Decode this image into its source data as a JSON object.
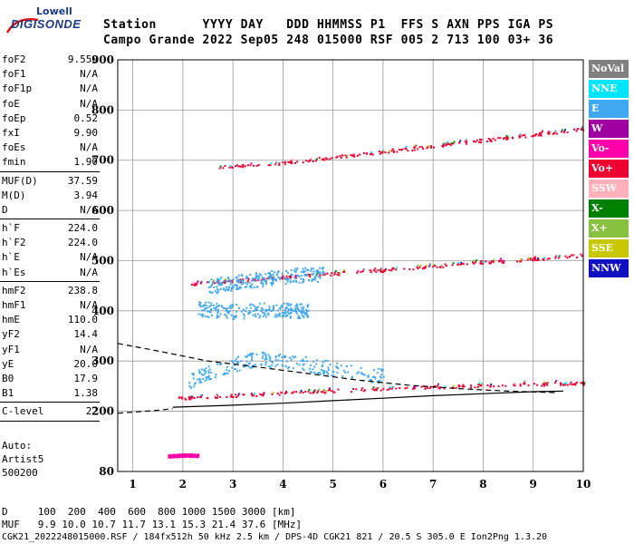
{
  "logo": {
    "line1": "Lowell",
    "line2": "DIGISONDE"
  },
  "header": {
    "row1": "Station      YYYY DAY   DDD HHMMSS P1  FFS S AXN PPS IGA PS",
    "row2": "Campo Grande 2022 Sep05 248 015000 RSF 005 2 713 100 03+ 36"
  },
  "params_group1": [
    {
      "k": "foF2",
      "v": "9.550"
    },
    {
      "k": "foF1",
      "v": "N/A"
    },
    {
      "k": "foF1p",
      "v": "N/A"
    },
    {
      "k": "foE",
      "v": "N/A"
    },
    {
      "k": "foEp",
      "v": "0.52"
    },
    {
      "k": "fxI",
      "v": "9.90"
    },
    {
      "k": "foEs",
      "v": "N/A"
    },
    {
      "k": "fmin",
      "v": "1.90"
    }
  ],
  "params_group2": [
    {
      "k": "MUF(D)",
      "v": "37.59"
    },
    {
      "k": "M(D)",
      "v": "3.94"
    },
    {
      "k": "D",
      "v": "N/A"
    }
  ],
  "params_group3": [
    {
      "k": "h`F",
      "v": "224.0"
    },
    {
      "k": "h`F2",
      "v": "224.0"
    },
    {
      "k": "h`E",
      "v": "N/A"
    },
    {
      "k": "h`Es",
      "v": "N/A"
    }
  ],
  "params_group4": [
    {
      "k": "hmF2",
      "v": "238.8"
    },
    {
      "k": "hmF1",
      "v": "N/A"
    },
    {
      "k": "hmE",
      "v": "110.0"
    },
    {
      "k": "yF2",
      "v": "14.4"
    },
    {
      "k": "yF1",
      "v": "N/A"
    },
    {
      "k": "yE",
      "v": "20.0"
    },
    {
      "k": "B0",
      "v": "17.9"
    },
    {
      "k": "B1",
      "v": "1.38"
    }
  ],
  "params_group5": [
    {
      "k": "C-level",
      "v": "22"
    }
  ],
  "auto": {
    "line1": "Auto:",
    "line2": "Artist5",
    "line3": "500200"
  },
  "legend": [
    {
      "label": "NoVal",
      "color": "#808080"
    },
    {
      "label": "NNE",
      "color": "#00e5ff"
    },
    {
      "label": "E",
      "color": "#40a8f0"
    },
    {
      "label": "W",
      "color": "#a000a0"
    },
    {
      "label": "Vo-",
      "color": "#ff00aa"
    },
    {
      "label": "Vo+",
      "color": "#ee0030"
    },
    {
      "label": "SSW",
      "color": "#ffb0b8"
    },
    {
      "label": "X-",
      "color": "#008000"
    },
    {
      "label": "X+",
      "color": "#88c040"
    },
    {
      "label": "SSE",
      "color": "#c8c800"
    },
    {
      "label": "NNW",
      "color": "#1010c0"
    }
  ],
  "footer": {
    "d_row": "D     100  200  400  600  800 1000 1500 3000 [km]",
    "muf_row": "MUF   9.9 10.0 10.7 11.7 13.1 15.3 21.4 37.6 [MHz]",
    "info_row": "CGK21_2022248015000.RSF / 184fx512h 50 kHz 2.5 km / DPS-4D CGK21 821 / 20.5 S 305.0 E Ion2Png 1.3.20"
  },
  "chart_data": {
    "type": "scatter",
    "xlim": [
      0.7,
      10
    ],
    "ylim": [
      80,
      900
    ],
    "x_ticks": [
      1,
      2,
      3,
      4,
      5,
      6,
      7,
      8,
      9,
      10
    ],
    "x_tick_labels": [
      "1",
      "2",
      "3",
      "4",
      "5",
      "6",
      "7",
      "8",
      "9",
      "10"
    ],
    "y_ticks": [
      80,
      200,
      300,
      400,
      500,
      600,
      700,
      800,
      900
    ],
    "y_tick_labels": [
      "80",
      "200",
      "300",
      "400",
      "500",
      "600",
      "700",
      "800",
      "900"
    ],
    "grid": true,
    "traces": [
      {
        "name": "Vo+",
        "points": [
          [
            1.8,
            226
          ],
          [
            2.5,
            230
          ],
          [
            3.5,
            235
          ],
          [
            4.5,
            240
          ],
          [
            5.5,
            244
          ],
          [
            6.5,
            248
          ],
          [
            7.5,
            251
          ],
          [
            8.5,
            254
          ],
          [
            9.5,
            256
          ],
          [
            10,
            257
          ]
        ]
      },
      {
        "name": "Vo+",
        "points": [
          [
            2.1,
            454
          ],
          [
            3,
            461
          ],
          [
            4,
            468
          ],
          [
            5,
            475
          ],
          [
            6,
            482
          ],
          [
            7,
            490
          ],
          [
            8,
            497
          ],
          [
            9,
            505
          ],
          [
            10,
            512
          ]
        ]
      },
      {
        "name": "Vo+",
        "points": [
          [
            2.6,
            686
          ],
          [
            4,
            696
          ],
          [
            5,
            707
          ],
          [
            6,
            718
          ],
          [
            7,
            729
          ],
          [
            8,
            741
          ],
          [
            9,
            752
          ],
          [
            10,
            764
          ]
        ]
      },
      {
        "name": "E",
        "points": [
          [
            2.3,
            405
          ],
          [
            3,
            400
          ],
          [
            4,
            403
          ],
          [
            4.5,
            400
          ]
        ]
      },
      {
        "name": "E",
        "points": [
          [
            2.5,
            450
          ],
          [
            3.2,
            460
          ],
          [
            4,
            470
          ],
          [
            4.8,
            475
          ]
        ]
      },
      {
        "name": "E",
        "points": [
          [
            2.1,
            260
          ],
          [
            2.8,
            290
          ],
          [
            3.5,
            305
          ],
          [
            4.2,
            300
          ],
          [
            5,
            285
          ],
          [
            6,
            270
          ]
        ]
      },
      {
        "name": "Vo-",
        "points": [
          [
            1.7,
            112
          ],
          [
            2.0,
            113
          ],
          [
            2.3,
            113
          ]
        ]
      }
    ],
    "profile_curves": [
      {
        "style": "dashed",
        "points": [
          [
            0.7,
            335
          ],
          [
            1.5,
            320
          ],
          [
            2.5,
            300
          ],
          [
            3.5,
            288
          ],
          [
            4.5,
            275
          ],
          [
            5.5,
            262
          ],
          [
            6.5,
            252
          ],
          [
            7.5,
            245
          ],
          [
            8.5,
            240
          ],
          [
            9.5,
            237
          ]
        ]
      },
      {
        "style": "solid",
        "points": [
          [
            1.8,
            208
          ],
          [
            3,
            212
          ],
          [
            4,
            216
          ],
          [
            5,
            221
          ],
          [
            6,
            226
          ],
          [
            7,
            231
          ],
          [
            8,
            235
          ],
          [
            9,
            239
          ],
          [
            9.6,
            240
          ]
        ]
      },
      {
        "style": "dashed",
        "points": [
          [
            0.7,
            196
          ],
          [
            1.5,
            202
          ],
          [
            1.8,
            205
          ]
        ]
      }
    ]
  }
}
